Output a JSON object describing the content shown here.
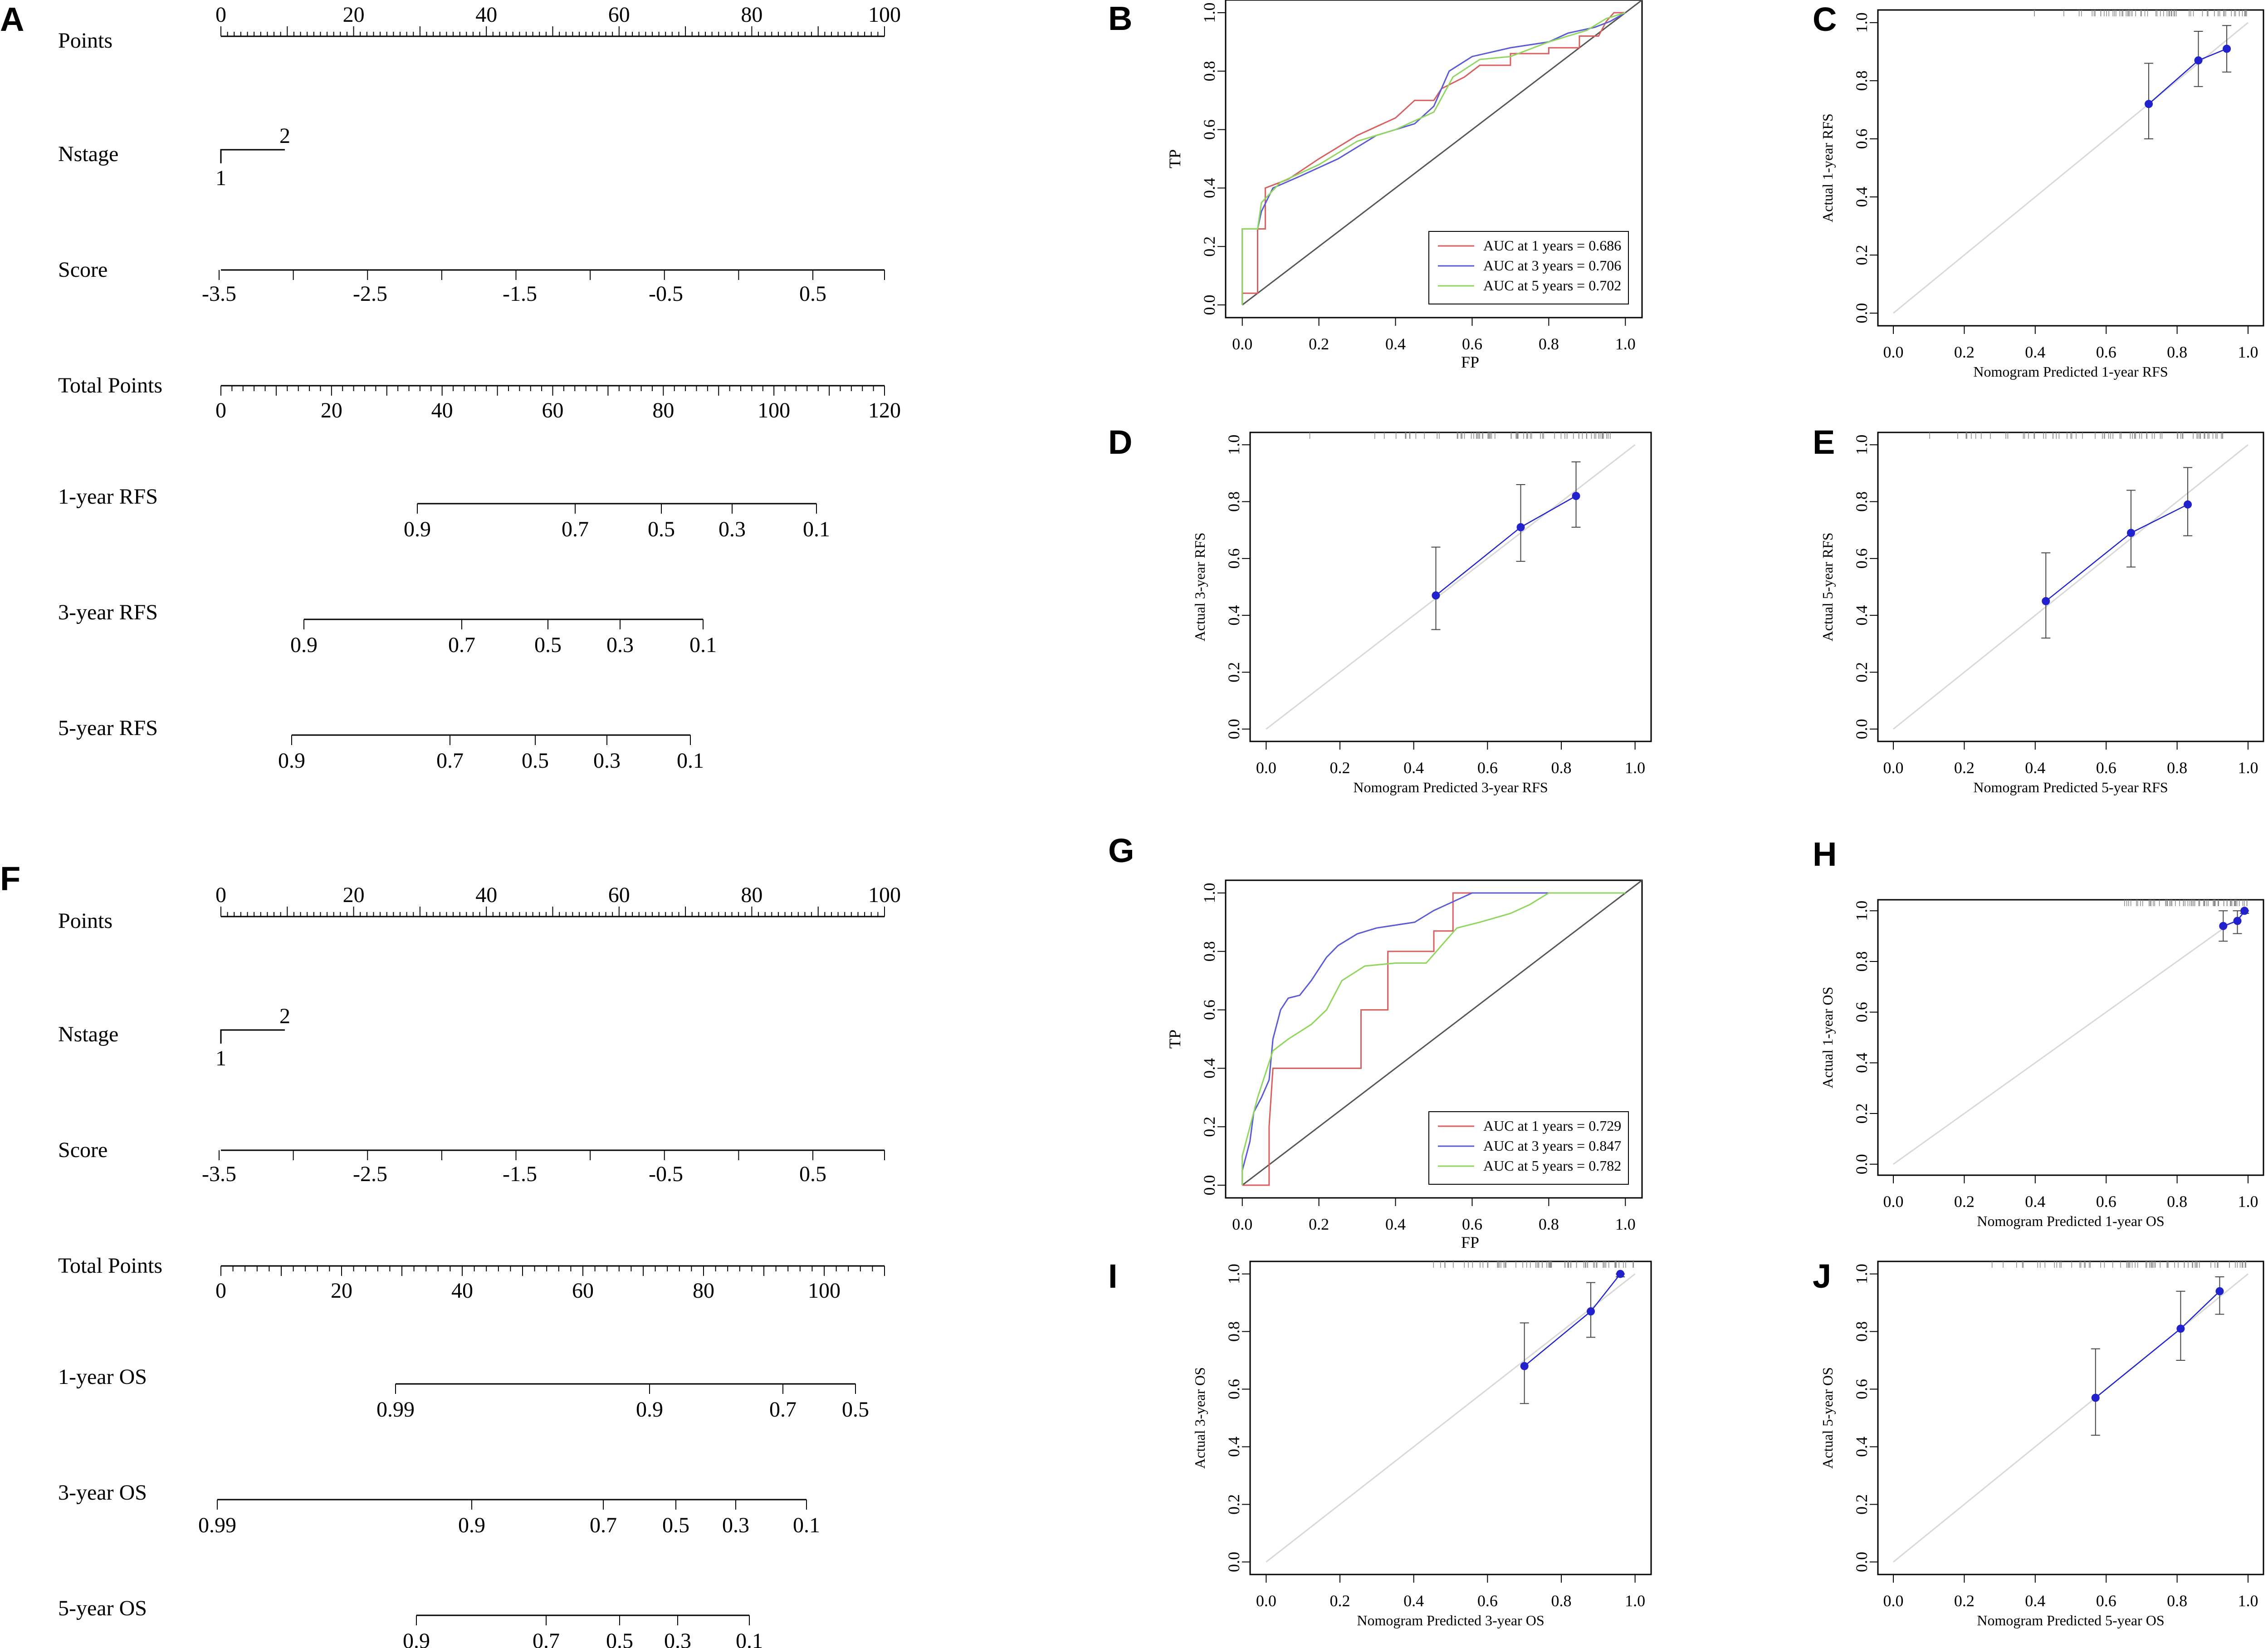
{
  "chart_data": [
    {
      "panel": "A",
      "type": "nomogram",
      "rows": [
        {
          "label": "Points",
          "type": "points",
          "ticks": [
            0,
            20,
            40,
            60,
            80,
            100
          ]
        },
        {
          "label": "Nstage",
          "type": "categorical",
          "categories": [
            "1",
            "2"
          ]
        },
        {
          "label": "Score",
          "type": "axis",
          "ticks": [
            "-3.5",
            "-2.5",
            "-1.5",
            "-0.5",
            "0.5"
          ]
        },
        {
          "label": "Total Points",
          "type": "total",
          "ticks": [
            0,
            20,
            40,
            60,
            80,
            100,
            120
          ]
        },
        {
          "label": "1-year RFS",
          "type": "prob",
          "ticks": [
            "0.9",
            "0.7",
            "0.5",
            "0.3",
            "0.1"
          ]
        },
        {
          "label": "3-year RFS",
          "type": "prob",
          "ticks": [
            "0.9",
            "0.7",
            "0.5",
            "0.3",
            "0.1"
          ]
        },
        {
          "label": "5-year RFS",
          "type": "prob",
          "ticks": [
            "0.9",
            "0.7",
            "0.5",
            "0.3",
            "0.1"
          ]
        }
      ]
    },
    {
      "panel": "B",
      "type": "line",
      "xlabel": "FP",
      "ylabel": "TP",
      "xlim": [
        0,
        1
      ],
      "ylim": [
        0,
        1
      ],
      "legend_position": "bottom-right",
      "series": [
        {
          "name": "AUC at 1 years = 0.686",
          "color": "#d95f5f",
          "points": [
            [
              0,
              0
            ],
            [
              0,
              0.04
            ],
            [
              0.04,
              0.04
            ],
            [
              0.04,
              0.26
            ],
            [
              0.06,
              0.26
            ],
            [
              0.06,
              0.4
            ],
            [
              0.12,
              0.43
            ],
            [
              0.2,
              0.5
            ],
            [
              0.3,
              0.58
            ],
            [
              0.4,
              0.64
            ],
            [
              0.45,
              0.7
            ],
            [
              0.5,
              0.7
            ],
            [
              0.52,
              0.74
            ],
            [
              0.58,
              0.78
            ],
            [
              0.62,
              0.82
            ],
            [
              0.7,
              0.82
            ],
            [
              0.7,
              0.86
            ],
            [
              0.8,
              0.86
            ],
            [
              0.8,
              0.88
            ],
            [
              0.88,
              0.88
            ],
            [
              0.88,
              0.92
            ],
            [
              0.93,
              0.92
            ],
            [
              0.95,
              0.97
            ],
            [
              0.97,
              1
            ],
            [
              1,
              1
            ]
          ]
        },
        {
          "name": "AUC at 3 years = 0.706",
          "color": "#5a5ad6",
          "points": [
            [
              0,
              0
            ],
            [
              0,
              0.26
            ],
            [
              0.04,
              0.26
            ],
            [
              0.05,
              0.32
            ],
            [
              0.08,
              0.4
            ],
            [
              0.15,
              0.44
            ],
            [
              0.25,
              0.5
            ],
            [
              0.35,
              0.58
            ],
            [
              0.45,
              0.62
            ],
            [
              0.5,
              0.68
            ],
            [
              0.54,
              0.8
            ],
            [
              0.6,
              0.85
            ],
            [
              0.7,
              0.88
            ],
            [
              0.8,
              0.9
            ],
            [
              0.85,
              0.93
            ],
            [
              0.92,
              0.95
            ],
            [
              0.96,
              0.97
            ],
            [
              1,
              1
            ]
          ]
        },
        {
          "name": "AUC at 5 years = 0.702",
          "color": "#8ed65c",
          "points": [
            [
              0,
              0
            ],
            [
              0,
              0.26
            ],
            [
              0.04,
              0.26
            ],
            [
              0.05,
              0.35
            ],
            [
              0.1,
              0.42
            ],
            [
              0.2,
              0.48
            ],
            [
              0.3,
              0.56
            ],
            [
              0.4,
              0.6
            ],
            [
              0.5,
              0.66
            ],
            [
              0.55,
              0.78
            ],
            [
              0.62,
              0.84
            ],
            [
              0.7,
              0.85
            ],
            [
              0.8,
              0.9
            ],
            [
              0.9,
              0.94
            ],
            [
              0.95,
              0.98
            ],
            [
              1,
              1
            ]
          ]
        }
      ]
    },
    {
      "panel": "C",
      "type": "scatter",
      "xlabel": "Nomogram Predicted 1-year RFS",
      "ylabel": "Actual 1-year RFS",
      "xlim": [
        0,
        1
      ],
      "ylim": [
        0,
        1
      ],
      "points": [
        {
          "x": 0.72,
          "y": 0.72,
          "lo": 0.6,
          "hi": 0.86
        },
        {
          "x": 0.86,
          "y": 0.87,
          "lo": 0.78,
          "hi": 0.97
        },
        {
          "x": 0.94,
          "y": 0.91,
          "lo": 0.83,
          "hi": 0.99
        }
      ]
    },
    {
      "panel": "D",
      "type": "scatter",
      "xlabel": "Nomogram Predicted 3-year RFS",
      "ylabel": "Actual 3-year RFS",
      "xlim": [
        0,
        1
      ],
      "ylim": [
        0,
        1
      ],
      "points": [
        {
          "x": 0.46,
          "y": 0.47,
          "lo": 0.35,
          "hi": 0.64
        },
        {
          "x": 0.69,
          "y": 0.71,
          "lo": 0.59,
          "hi": 0.86
        },
        {
          "x": 0.84,
          "y": 0.82,
          "lo": 0.71,
          "hi": 0.94
        }
      ]
    },
    {
      "panel": "E",
      "type": "scatter",
      "xlabel": "Nomogram Predicted 5-year RFS",
      "ylabel": "Actual 5-year RFS",
      "xlim": [
        0,
        1
      ],
      "ylim": [
        0,
        1
      ],
      "points": [
        {
          "x": 0.43,
          "y": 0.45,
          "lo": 0.32,
          "hi": 0.62
        },
        {
          "x": 0.67,
          "y": 0.69,
          "lo": 0.57,
          "hi": 0.84
        },
        {
          "x": 0.83,
          "y": 0.79,
          "lo": 0.68,
          "hi": 0.92
        }
      ]
    },
    {
      "panel": "F",
      "type": "nomogram",
      "rows": [
        {
          "label": "Points",
          "type": "points",
          "ticks": [
            0,
            20,
            40,
            60,
            80,
            100
          ]
        },
        {
          "label": "Nstage",
          "type": "categorical",
          "categories": [
            "1",
            "2"
          ]
        },
        {
          "label": "Score",
          "type": "axis",
          "ticks": [
            "-3.5",
            "-2.5",
            "-1.5",
            "-0.5",
            "0.5"
          ]
        },
        {
          "label": "Total Points",
          "type": "total",
          "ticks": [
            0,
            20,
            40,
            60,
            80,
            100
          ]
        },
        {
          "label": "1-year OS",
          "type": "prob",
          "ticks": [
            "0.99",
            "0.9",
            "0.7",
            "0.5"
          ]
        },
        {
          "label": "3-year OS",
          "type": "prob",
          "ticks": [
            "0.99",
            "0.9",
            "0.7",
            "0.5",
            "0.3",
            "0.1"
          ]
        },
        {
          "label": "5-year OS",
          "type": "prob",
          "ticks": [
            "0.9",
            "0.7",
            "0.5",
            "0.3",
            "0.1"
          ]
        }
      ]
    },
    {
      "panel": "G",
      "type": "line",
      "xlabel": "FP",
      "ylabel": "TP",
      "xlim": [
        0,
        1
      ],
      "ylim": [
        0,
        1
      ],
      "legend_position": "bottom-right",
      "series": [
        {
          "name": "AUC at 1 years = 0.729",
          "color": "#d95f5f",
          "points": [
            [
              0,
              0
            ],
            [
              0.07,
              0
            ],
            [
              0.07,
              0.2
            ],
            [
              0.08,
              0.4
            ],
            [
              0.31,
              0.4
            ],
            [
              0.31,
              0.6
            ],
            [
              0.38,
              0.6
            ],
            [
              0.38,
              0.8
            ],
            [
              0.5,
              0.8
            ],
            [
              0.5,
              0.87
            ],
            [
              0.55,
              0.87
            ],
            [
              0.55,
              1
            ],
            [
              1,
              1
            ]
          ]
        },
        {
          "name": "AUC at 3 years = 0.847",
          "color": "#5a5ad6",
          "points": [
            [
              0,
              0
            ],
            [
              0,
              0.05
            ],
            [
              0.02,
              0.15
            ],
            [
              0.03,
              0.25
            ],
            [
              0.05,
              0.3
            ],
            [
              0.07,
              0.36
            ],
            [
              0.08,
              0.5
            ],
            [
              0.1,
              0.6
            ],
            [
              0.12,
              0.64
            ],
            [
              0.15,
              0.65
            ],
            [
              0.18,
              0.7
            ],
            [
              0.22,
              0.78
            ],
            [
              0.25,
              0.82
            ],
            [
              0.3,
              0.86
            ],
            [
              0.35,
              0.88
            ],
            [
              0.45,
              0.9
            ],
            [
              0.5,
              0.94
            ],
            [
              0.55,
              0.97
            ],
            [
              0.6,
              1
            ],
            [
              1,
              1
            ]
          ]
        },
        {
          "name": "AUC at 5 years = 0.782",
          "color": "#8ed65c",
          "points": [
            [
              0,
              0
            ],
            [
              0,
              0.1
            ],
            [
              0.02,
              0.2
            ],
            [
              0.04,
              0.3
            ],
            [
              0.08,
              0.46
            ],
            [
              0.12,
              0.5
            ],
            [
              0.18,
              0.55
            ],
            [
              0.22,
              0.6
            ],
            [
              0.26,
              0.7
            ],
            [
              0.32,
              0.75
            ],
            [
              0.4,
              0.76
            ],
            [
              0.48,
              0.76
            ],
            [
              0.52,
              0.82
            ],
            [
              0.56,
              0.88
            ],
            [
              0.62,
              0.9
            ],
            [
              0.7,
              0.93
            ],
            [
              0.75,
              0.96
            ],
            [
              0.8,
              1
            ],
            [
              1,
              1
            ]
          ]
        }
      ]
    },
    {
      "panel": "H",
      "type": "scatter",
      "xlabel": "Nomogram Predicted 1-year OS",
      "ylabel": "Actual 1-year OS",
      "xlim": [
        0,
        1
      ],
      "ylim": [
        0,
        1
      ],
      "points": [
        {
          "x": 0.93,
          "y": 0.94,
          "lo": 0.88,
          "hi": 1.0
        },
        {
          "x": 0.97,
          "y": 0.96,
          "lo": 0.91,
          "hi": 1.0
        },
        {
          "x": 0.99,
          "y": 1.0,
          "lo": 0.99,
          "hi": 1.0
        }
      ]
    },
    {
      "panel": "I",
      "type": "scatter",
      "xlabel": "Nomogram Predicted 3-year OS",
      "ylabel": "Actual 3-year OS",
      "xlim": [
        0,
        1
      ],
      "ylim": [
        0,
        1
      ],
      "points": [
        {
          "x": 0.7,
          "y": 0.68,
          "lo": 0.55,
          "hi": 0.83
        },
        {
          "x": 0.88,
          "y": 0.87,
          "lo": 0.78,
          "hi": 0.97
        },
        {
          "x": 0.96,
          "y": 1.0,
          "lo": 0.99,
          "hi": 1.0
        }
      ]
    },
    {
      "panel": "J",
      "type": "scatter",
      "xlabel": "Nomogram Predicted 5-year OS",
      "ylabel": "Actual 5-year OS",
      "xlim": [
        0,
        1
      ],
      "ylim": [
        0,
        1
      ],
      "points": [
        {
          "x": 0.57,
          "y": 0.57,
          "lo": 0.44,
          "hi": 0.74
        },
        {
          "x": 0.81,
          "y": 0.81,
          "lo": 0.7,
          "hi": 0.94
        },
        {
          "x": 0.92,
          "y": 0.94,
          "lo": 0.86,
          "hi": 0.99
        }
      ]
    }
  ],
  "axis_ticks": [
    "0.0",
    "0.2",
    "0.4",
    "0.6",
    "0.8",
    "1.0"
  ],
  "colors": {
    "calibration": "#2222cc",
    "diagonal": "#d8d8d8",
    "reference": "#555555",
    "rug": "#888888"
  }
}
